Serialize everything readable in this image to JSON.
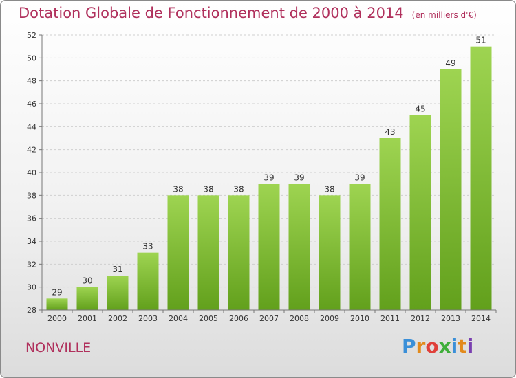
{
  "header": {
    "title": "Dotation Globale de Fonctionnement de 2000 à 2014",
    "subtitle": "(en milliers d'€)"
  },
  "footer": {
    "town": "NONVILLE",
    "logo": "Proxiti"
  },
  "colors": {
    "title": "#b0305c",
    "bar_top": "#9ed451",
    "bar_bottom": "#62a01c"
  },
  "chart_data": {
    "type": "bar",
    "title": "Dotation Globale de Fonctionnement de 2000 à 2014",
    "subtitle": "(en milliers d'€)",
    "xlabel": "",
    "ylabel": "",
    "categories": [
      "2000",
      "2001",
      "2002",
      "2003",
      "2004",
      "2005",
      "2006",
      "2007",
      "2008",
      "2009",
      "2010",
      "2011",
      "2012",
      "2013",
      "2014"
    ],
    "values": [
      29,
      30,
      31,
      33,
      38,
      38,
      38,
      39,
      39,
      38,
      39,
      43,
      45,
      49,
      51
    ],
    "ylim": [
      28,
      52
    ],
    "yticks": [
      28,
      30,
      32,
      34,
      36,
      38,
      40,
      42,
      44,
      46,
      48,
      50,
      52
    ],
    "grid": true,
    "data_labels": true
  }
}
